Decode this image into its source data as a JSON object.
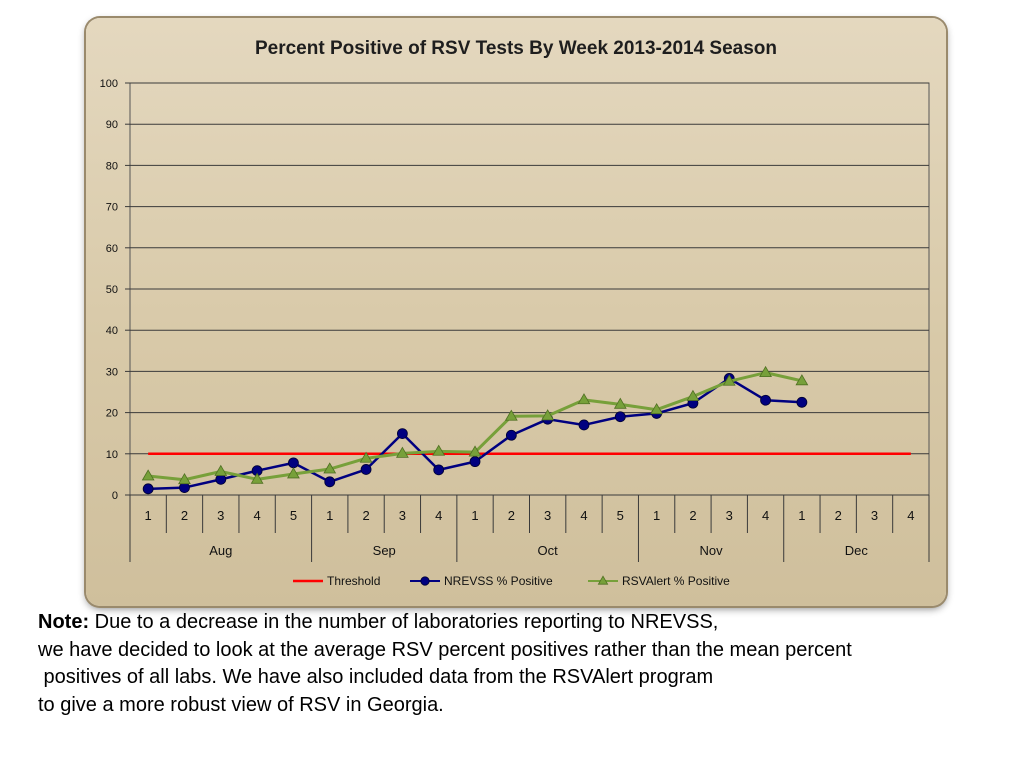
{
  "chart_data": {
    "type": "line",
    "title": "Percent Positive of RSV Tests By Week 2013-2014 Season",
    "xlabel": "",
    "ylabel": "",
    "ylim": [
      0,
      100
    ],
    "y_ticks": [
      "0",
      "10",
      "20",
      "30",
      "40",
      "50",
      "60",
      "70",
      "80",
      "90",
      "100"
    ],
    "grid": "horizontal",
    "legend_position": "bottom",
    "categories": [
      "1",
      "2",
      "3",
      "4",
      "5",
      "1",
      "2",
      "3",
      "4",
      "1",
      "2",
      "3",
      "4",
      "5",
      "1",
      "2",
      "3",
      "4",
      "1",
      "2",
      "3",
      "4"
    ],
    "months": [
      {
        "name": "Aug",
        "weeks": 5
      },
      {
        "name": "Sep",
        "weeks": 4
      },
      {
        "name": "Oct",
        "weeks": 5
      },
      {
        "name": "Nov",
        "weeks": 4
      },
      {
        "name": "Dec",
        "weeks": 4
      }
    ],
    "series": [
      {
        "name": "Threshold",
        "color": "#ff0000",
        "marker": "none",
        "values": [
          10,
          10,
          10,
          10,
          10,
          10,
          10,
          10,
          10,
          10,
          10,
          10,
          10,
          10,
          10,
          10,
          10,
          10,
          10,
          10,
          10,
          10
        ]
      },
      {
        "name": "NREVSS % Positive",
        "color": "#000080",
        "marker": "circle",
        "values": [
          1.5,
          1.8,
          3.8,
          5.9,
          7.8,
          3.2,
          6.2,
          14.9,
          6.1,
          8.1,
          14.5,
          18.4,
          17.0,
          19.0,
          19.8,
          22.3,
          28.3,
          23.0,
          22.5,
          null,
          null,
          null
        ]
      },
      {
        "name": "RSVAlert % Positive",
        "color": "#77a03a",
        "marker": "triangle",
        "values": [
          4.6,
          3.7,
          5.7,
          3.8,
          5.1,
          6.3,
          8.9,
          10.1,
          10.6,
          10.4,
          19.1,
          19.2,
          23.1,
          22.0,
          20.7,
          23.9,
          27.6,
          29.7,
          27.7,
          null,
          null,
          null
        ]
      }
    ]
  },
  "note": {
    "label": "Note:",
    "line1": " Due to a decrease in the number of laboratories reporting to NREVSS,",
    "line2": "we have decided to look at the average RSV percent positives rather than the mean percent",
    "line3": " positives of all labs. We have also included data from the RSVAlert program",
    "line4": "to give a more robust view of RSV in Georgia."
  }
}
